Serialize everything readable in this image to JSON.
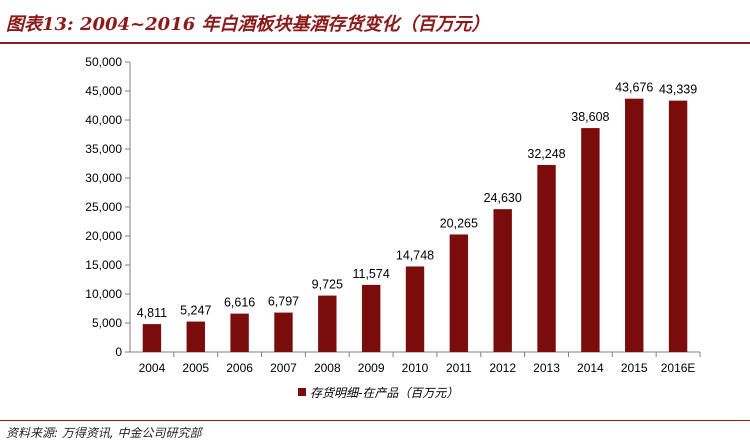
{
  "figure": {
    "title": "图表13: 2004~2016 年白酒板块基酒存货变化（百万元）",
    "source": "资料来源: 万得资讯, 中金公司研究部"
  },
  "chart_data": {
    "type": "bar",
    "title": "",
    "xlabel": "",
    "ylabel": "",
    "categories": [
      "2004",
      "2005",
      "2006",
      "2007",
      "2008",
      "2009",
      "2010",
      "2011",
      "2012",
      "2013",
      "2014",
      "2015",
      "2016E"
    ],
    "series": [
      {
        "name": "存货明细-在产品（百万元）",
        "values": [
          4811,
          5247,
          6616,
          6797,
          9725,
          11574,
          14748,
          20265,
          24630,
          32248,
          38608,
          43676,
          43339
        ],
        "labels": [
          "4,811",
          "5,247",
          "6,616",
          "6,797",
          "9,725",
          "11,574",
          "14,748",
          "20,265",
          "24,630",
          "32,248",
          "38,608",
          "43,676",
          "43,339"
        ],
        "color": "#7B0C0C"
      }
    ],
    "ylim": [
      0,
      50000
    ],
    "yticks": [
      0,
      5000,
      10000,
      15000,
      20000,
      25000,
      30000,
      35000,
      40000,
      45000,
      50000
    ],
    "ytick_labels": [
      "0",
      "5,000",
      "10,000",
      "15,000",
      "20,000",
      "25,000",
      "30,000",
      "35,000",
      "40,000",
      "45,000",
      "50,000"
    ],
    "grid": false,
    "legend": "bottom-center"
  },
  "colors": {
    "accent": "#8B1A1A",
    "bar": "#7B0C0C",
    "axis": "#7F7F7F"
  }
}
